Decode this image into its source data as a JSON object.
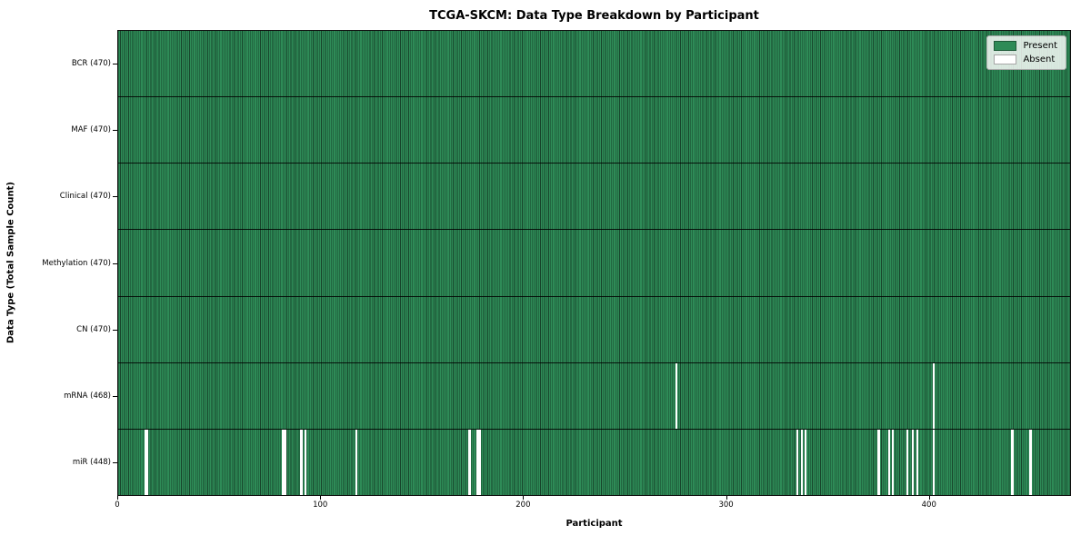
{
  "title": "TCGA-SKCM: Data Type Breakdown by Participant",
  "legend": {
    "present_label": "Present",
    "absent_label": "Absent"
  },
  "colors": {
    "present_fill": "#2e8b57",
    "bar_edge": "#17452b",
    "absent_fill": "#ffffff"
  },
  "chart_data": {
    "type": "heatmap",
    "title": "TCGA-SKCM: Data Type Breakdown by Participant",
    "xlabel": "Participant",
    "ylabel": "Data Type (Total Sample Count)",
    "x_ticks": [
      0,
      100,
      200,
      300,
      400
    ],
    "xlim": [
      0,
      470
    ],
    "n_participants": 470,
    "legend_entries": [
      "Present",
      "Absent"
    ],
    "legend_position": "upper right",
    "grid": false,
    "rows": [
      {
        "label": "BCR (470)",
        "data_type": "BCR",
        "present_count": 470,
        "absent_participants": []
      },
      {
        "label": "MAF (470)",
        "data_type": "MAF",
        "present_count": 470,
        "absent_participants": []
      },
      {
        "label": "Clinical (470)",
        "data_type": "Clinical",
        "present_count": 470,
        "absent_participants": []
      },
      {
        "label": "Methylation (470)",
        "data_type": "Methylation",
        "present_count": 470,
        "absent_participants": []
      },
      {
        "label": "CN (470)",
        "data_type": "CN",
        "present_count": 470,
        "absent_participants": []
      },
      {
        "label": "mRNA (468)",
        "data_type": "mRNA",
        "present_count": 468,
        "absent_participants": [
          275,
          402
        ]
      },
      {
        "label": "miR (448)",
        "data_type": "miR",
        "present_count": 448,
        "absent_participants": [
          13,
          14,
          81,
          82,
          90,
          92,
          117,
          173,
          177,
          178,
          335,
          337,
          339,
          375,
          380,
          382,
          389,
          392,
          394,
          402,
          441,
          450
        ]
      }
    ]
  }
}
